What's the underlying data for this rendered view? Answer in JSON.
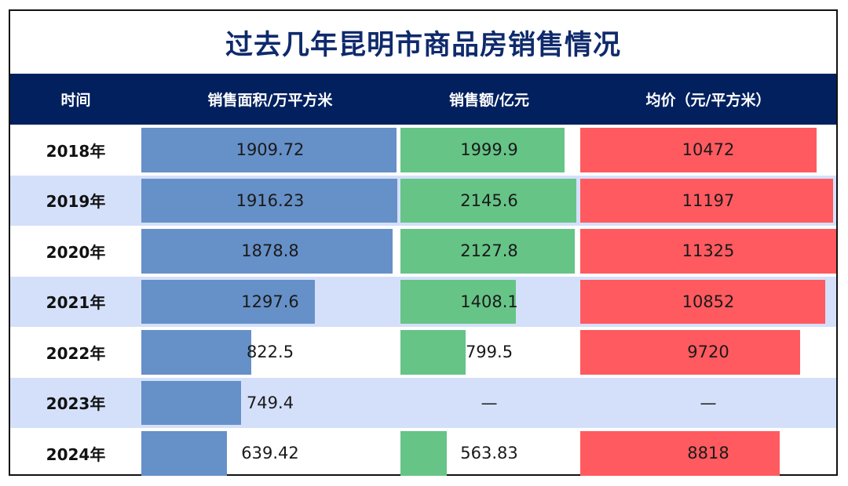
{
  "title": "过去几年昆明市商品房销售情况",
  "header": {
    "col_time": "时间",
    "col_area": "销售面积/万平方米",
    "col_sales": "销售额/亿元",
    "col_price": "均价（元/平方米）"
  },
  "colors": {
    "header_bg": "#02205e",
    "title": "#0f2a6c",
    "alt_row": "#d4e0fa",
    "area_bar": "#6690c8",
    "sales_bar": "#66c487",
    "price_bar": "#ff5a5f"
  },
  "rows": [
    {
      "year": "2018年",
      "area": "1909.72",
      "sales": "1999.9",
      "price": "10472"
    },
    {
      "year": "2019年",
      "area": "1916.23",
      "sales": "2145.6",
      "price": "11197"
    },
    {
      "year": "2020年",
      "area": "1878.8",
      "sales": "2127.8",
      "price": "11325"
    },
    {
      "year": "2021年",
      "area": "1297.6",
      "sales": "1408.1",
      "price": "10852"
    },
    {
      "year": "2022年",
      "area": "822.5",
      "sales": "799.5",
      "price": "9720"
    },
    {
      "year": "2023年",
      "area": "749.4",
      "sales": "—",
      "price": "—"
    },
    {
      "year": "2024年",
      "area": "639.42",
      "sales": "563.83",
      "price": "8818"
    }
  ],
  "chart_data": {
    "type": "table",
    "title": "过去几年昆明市商品房销售情况",
    "categories": [
      "2018年",
      "2019年",
      "2020年",
      "2021年",
      "2022年",
      "2023年",
      "2024年"
    ],
    "series": [
      {
        "name": "销售面积/万平方米",
        "values": [
          1909.72,
          1916.23,
          1878.8,
          1297.6,
          822.5,
          749.4,
          639.42
        ]
      },
      {
        "name": "销售额/亿元",
        "values": [
          1999.9,
          2145.6,
          2127.8,
          1408.1,
          799.5,
          null,
          563.83
        ]
      },
      {
        "name": "均价（元/平方米）",
        "values": [
          10472,
          11197,
          11325,
          10852,
          9720,
          null,
          8818
        ]
      }
    ],
    "xlabel": "时间",
    "ylabel": ""
  }
}
